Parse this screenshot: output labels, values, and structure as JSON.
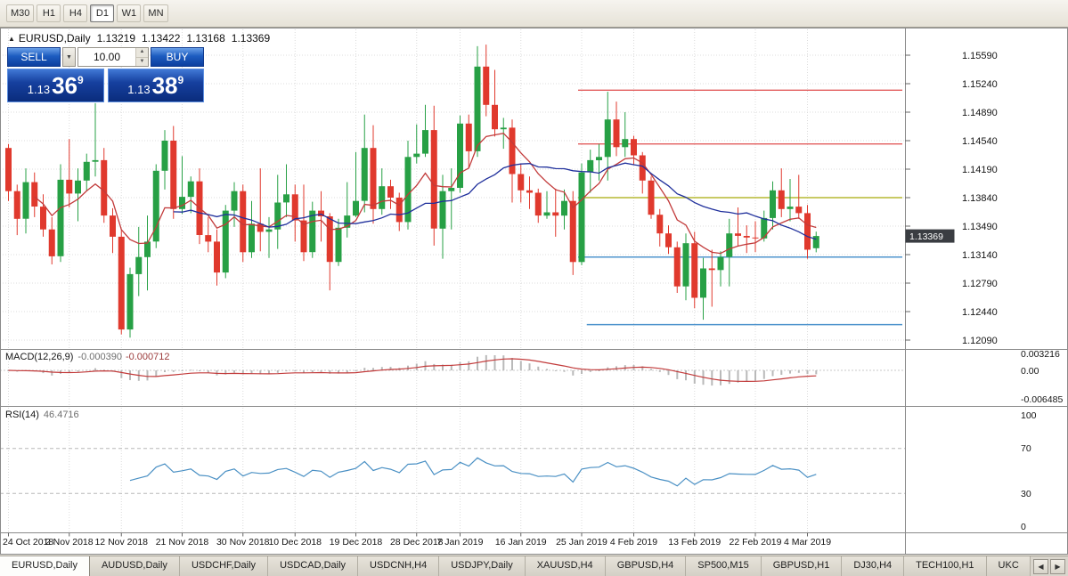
{
  "toolbar": {
    "timeframes": [
      {
        "label": "M30",
        "active": false
      },
      {
        "label": "H1",
        "active": false
      },
      {
        "label": "H4",
        "active": false
      },
      {
        "label": "D1",
        "active": true
      },
      {
        "label": "W1",
        "active": false
      },
      {
        "label": "MN",
        "active": false
      }
    ]
  },
  "header": {
    "symbol": "EURUSD,Daily",
    "open": "1.13219",
    "high": "1.13422",
    "low": "1.13168",
    "close": "1.13369"
  },
  "trade": {
    "sell_label": "SELL",
    "buy_label": "BUY",
    "volume": "10.00",
    "sell_price": {
      "prefix": "1.13",
      "big": "36",
      "sup": "9"
    },
    "buy_price": {
      "prefix": "1.13",
      "big": "38",
      "sup": "9"
    }
  },
  "macd": {
    "name": "MACD(12,26,9)",
    "value1": "-0.000390",
    "value2": "-0.000712",
    "scale": [
      "0.003216",
      "0.00",
      "-0.006485"
    ]
  },
  "rsi": {
    "name": "RSI(14)",
    "value": "46.4716",
    "scale": [
      "100",
      "70",
      "30",
      "0"
    ],
    "levels": [
      70,
      30
    ]
  },
  "icons": {
    "header_triangle": "▲",
    "caret_down": "▼",
    "spin_up": "▲",
    "spin_down": "▼",
    "arrow_left": "◀",
    "arrow_right": "▶"
  },
  "tabs": [
    {
      "label": "EURUSD,Daily",
      "active": true
    },
    {
      "label": "AUDUSD,Daily",
      "active": false
    },
    {
      "label": "USDCHF,Daily",
      "active": false
    },
    {
      "label": "USDCAD,Daily",
      "active": false
    },
    {
      "label": "USDCNH,H4",
      "active": false
    },
    {
      "label": "USDJPY,Daily",
      "active": false
    },
    {
      "label": "XAUUSD,H4",
      "active": false
    },
    {
      "label": "GBPUSD,H4",
      "active": false
    },
    {
      "label": "SP500,M15",
      "active": false
    },
    {
      "label": "GBPUSD,H1",
      "active": false
    },
    {
      "label": "DJ30,H4",
      "active": false
    },
    {
      "label": "TECH100,H1",
      "active": false
    },
    {
      "label": "UKC",
      "active": false
    }
  ],
  "colors": {
    "bull": "#27a045",
    "bear": "#e0392d",
    "ma_fast": "#c23b3b",
    "ma_slow": "#20309c",
    "grid": "#dcdcdc",
    "separator": "#8a8a8a",
    "macd_hist": "#b9b9b9",
    "macd_signal": "#c23b3b",
    "rsi_line": "#4a90c4",
    "badge_bg": "#3a3d42",
    "resistance": "#e25d5d",
    "pivot": "#b6b832",
    "support": "#4f94cd"
  },
  "chart_data": {
    "type": "candlestick",
    "symbol": "EURUSD",
    "timeframe": "Daily",
    "current_price_label": "1.13369",
    "ohlc_current": {
      "open": 1.13219,
      "high": 1.13422,
      "low": 1.13168,
      "close": 1.13369
    },
    "y_axis": {
      "min": 1.1209,
      "max": 1.1559,
      "tick": 0.0035
    },
    "price_axis_labels": [
      "1.15590",
      "1.15240",
      "1.14890",
      "1.14540",
      "1.14190",
      "1.13840",
      "1.13490",
      "1.13140",
      "1.12790",
      "1.12440",
      "1.12090"
    ],
    "date_ticks": [
      {
        "i": 0,
        "label": "24 Oct 2018"
      },
      {
        "i": 7,
        "label": "2 Nov 2018"
      },
      {
        "i": 13,
        "label": "12 Nov 2018"
      },
      {
        "i": 20,
        "label": "21 Nov 2018"
      },
      {
        "i": 27,
        "label": "30 Nov 2018"
      },
      {
        "i": 33,
        "label": "10 Dec 2018"
      },
      {
        "i": 40,
        "label": "19 Dec 2018"
      },
      {
        "i": 47,
        "label": "28 Dec 2018"
      },
      {
        "i": 52,
        "label": "7 Jan 2019"
      },
      {
        "i": 59,
        "label": "16 Jan 2019"
      },
      {
        "i": 66,
        "label": "25 Jan 2019"
      },
      {
        "i": 72,
        "label": "4 Feb 2019"
      },
      {
        "i": 79,
        "label": "13 Feb 2019"
      },
      {
        "i": 86,
        "label": "22 Feb 2019"
      },
      {
        "i": 92,
        "label": "4 Mar 2019"
      }
    ],
    "horizontal_lines": [
      {
        "price": 1.1516,
        "color": "#e25d5d",
        "start_index": 66
      },
      {
        "price": 1.145,
        "color": "#e25d5d",
        "start_index": 66
      },
      {
        "price": 1.1384,
        "color": "#b6b832",
        "start_index": 66
      },
      {
        "price": 1.1311,
        "color": "#4f94cd",
        "start_index": 66
      },
      {
        "price": 1.1228,
        "color": "#4f94cd",
        "start_index": 67
      }
    ],
    "moving_averages": [
      {
        "type": "EMA",
        "period": 8,
        "color": "#c23b3b"
      },
      {
        "type": "SMA",
        "period": 20,
        "color": "#20309c"
      }
    ],
    "indicators": [
      {
        "name": "MACD",
        "params": [
          12,
          26,
          9
        ],
        "display_values": [
          -0.00039,
          -0.000712
        ],
        "scale": [
          0.003216,
          0,
          -0.006485
        ]
      },
      {
        "name": "RSI",
        "params": [
          14
        ],
        "display_value": 46.4716,
        "scale": [
          100,
          70,
          30,
          0
        ],
        "levels": [
          70,
          30
        ]
      }
    ],
    "candles": [
      [
        1.1445,
        1.145,
        1.138,
        1.1392
      ],
      [
        1.1392,
        1.14,
        1.1338,
        1.1358
      ],
      [
        1.1358,
        1.142,
        1.134,
        1.1403
      ],
      [
        1.1403,
        1.1415,
        1.136,
        1.1373
      ],
      [
        1.1373,
        1.1388,
        1.1336,
        1.1345
      ],
      [
        1.1345,
        1.136,
        1.1302,
        1.1312
      ],
      [
        1.1312,
        1.1425,
        1.1305,
        1.1406
      ],
      [
        1.1406,
        1.1456,
        1.1372,
        1.1389
      ],
      [
        1.1389,
        1.142,
        1.1355,
        1.1405
      ],
      [
        1.1405,
        1.1438,
        1.1392,
        1.1428
      ],
      [
        1.1428,
        1.15,
        1.141,
        1.143
      ],
      [
        1.143,
        1.1445,
        1.1353,
        1.1362
      ],
      [
        1.1362,
        1.1371,
        1.1316,
        1.1336
      ],
      [
        1.1336,
        1.1344,
        1.1216,
        1.1222
      ],
      [
        1.1222,
        1.1298,
        1.1212,
        1.129
      ],
      [
        1.129,
        1.1348,
        1.1263,
        1.1311
      ],
      [
        1.1311,
        1.1362,
        1.127,
        1.133
      ],
      [
        1.133,
        1.1425,
        1.1322,
        1.1417
      ],
      [
        1.1417,
        1.1467,
        1.1394,
        1.1454
      ],
      [
        1.1454,
        1.1472,
        1.1358,
        1.137
      ],
      [
        1.137,
        1.1435,
        1.1364,
        1.1385
      ],
      [
        1.1385,
        1.141,
        1.1365,
        1.1404
      ],
      [
        1.1404,
        1.142,
        1.1327,
        1.1338
      ],
      [
        1.1338,
        1.136,
        1.1317,
        1.133
      ],
      [
        1.133,
        1.1345,
        1.1276,
        1.1292
      ],
      [
        1.1292,
        1.1375,
        1.1285,
        1.1368
      ],
      [
        1.1368,
        1.1403,
        1.1348,
        1.1392
      ],
      [
        1.1392,
        1.14,
        1.1305,
        1.1317
      ],
      [
        1.1317,
        1.138,
        1.131,
        1.1352
      ],
      [
        1.1352,
        1.142,
        1.1318,
        1.1342
      ],
      [
        1.1342,
        1.136,
        1.131,
        1.1345
      ],
      [
        1.1345,
        1.1412,
        1.1321,
        1.1378
      ],
      [
        1.1378,
        1.1425,
        1.136,
        1.1388
      ],
      [
        1.1388,
        1.14,
        1.133,
        1.1356
      ],
      [
        1.1356,
        1.14,
        1.1306,
        1.1317
      ],
      [
        1.1317,
        1.1379,
        1.131,
        1.1368
      ],
      [
        1.1368,
        1.1392,
        1.133,
        1.1361
      ],
      [
        1.1361,
        1.1365,
        1.127,
        1.1305
      ],
      [
        1.1305,
        1.1358,
        1.13,
        1.1347
      ],
      [
        1.1347,
        1.1403,
        1.1335,
        1.1362
      ],
      [
        1.1362,
        1.144,
        1.136,
        1.138
      ],
      [
        1.138,
        1.1486,
        1.1366,
        1.1445
      ],
      [
        1.1445,
        1.1473,
        1.1352,
        1.137
      ],
      [
        1.137,
        1.142,
        1.1363,
        1.1398
      ],
      [
        1.1398,
        1.1406,
        1.137,
        1.1384
      ],
      [
        1.1384,
        1.139,
        1.1343,
        1.1354
      ],
      [
        1.1354,
        1.1454,
        1.1345,
        1.1434
      ],
      [
        1.1434,
        1.1474,
        1.1426,
        1.1438
      ],
      [
        1.1438,
        1.1498,
        1.1434,
        1.1467
      ],
      [
        1.1467,
        1.1497,
        1.1325,
        1.1346
      ],
      [
        1.1346,
        1.1412,
        1.1309,
        1.1392
      ],
      [
        1.1392,
        1.142,
        1.1345,
        1.1396
      ],
      [
        1.1396,
        1.1485,
        1.139,
        1.1475
      ],
      [
        1.1475,
        1.1486,
        1.1421,
        1.1441
      ],
      [
        1.1441,
        1.157,
        1.1434,
        1.1545
      ],
      [
        1.1545,
        1.1572,
        1.1484,
        1.1498
      ],
      [
        1.1498,
        1.1541,
        1.1459,
        1.1468
      ],
      [
        1.1468,
        1.1482,
        1.1444,
        1.147
      ],
      [
        1.147,
        1.148,
        1.1378,
        1.1413
      ],
      [
        1.1413,
        1.1426,
        1.1378,
        1.1393
      ],
      [
        1.1393,
        1.141,
        1.137,
        1.139
      ],
      [
        1.139,
        1.1395,
        1.1353,
        1.1362
      ],
      [
        1.1362,
        1.1392,
        1.1358,
        1.1366
      ],
      [
        1.1366,
        1.1395,
        1.1336,
        1.1362
      ],
      [
        1.1362,
        1.1394,
        1.1345,
        1.138
      ],
      [
        1.138,
        1.1392,
        1.1289,
        1.1305
      ],
      [
        1.1305,
        1.1426,
        1.1301,
        1.1415
      ],
      [
        1.1415,
        1.1443,
        1.139,
        1.143
      ],
      [
        1.143,
        1.145,
        1.1405,
        1.1434
      ],
      [
        1.1434,
        1.1514,
        1.1405,
        1.148
      ],
      [
        1.148,
        1.1502,
        1.1435,
        1.1446
      ],
      [
        1.1446,
        1.1489,
        1.1434,
        1.1456
      ],
      [
        1.1456,
        1.146,
        1.1425,
        1.1436
      ],
      [
        1.1436,
        1.144,
        1.1389,
        1.1405
      ],
      [
        1.1405,
        1.141,
        1.1358,
        1.1363
      ],
      [
        1.1363,
        1.137,
        1.1324,
        1.134
      ],
      [
        1.134,
        1.135,
        1.1315,
        1.1323
      ],
      [
        1.1323,
        1.133,
        1.1267,
        1.1275
      ],
      [
        1.1275,
        1.134,
        1.1258,
        1.1328
      ],
      [
        1.1328,
        1.1342,
        1.1248,
        1.1261
      ],
      [
        1.1261,
        1.131,
        1.1234,
        1.1297
      ],
      [
        1.1297,
        1.132,
        1.125,
        1.1295
      ],
      [
        1.1295,
        1.1318,
        1.1275,
        1.1311
      ],
      [
        1.1311,
        1.1358,
        1.1275,
        1.134
      ],
      [
        1.134,
        1.1372,
        1.1324,
        1.1337
      ],
      [
        1.1337,
        1.135,
        1.1316,
        1.1335
      ],
      [
        1.1335,
        1.1355,
        1.1317,
        1.1334
      ],
      [
        1.1334,
        1.1368,
        1.133,
        1.1359
      ],
      [
        1.1359,
        1.1404,
        1.1345,
        1.1393
      ],
      [
        1.1393,
        1.142,
        1.136,
        1.137
      ],
      [
        1.137,
        1.1407,
        1.1355,
        1.1373
      ],
      [
        1.1373,
        1.1412,
        1.1358,
        1.1365
      ],
      [
        1.1365,
        1.1375,
        1.1309,
        1.132
      ],
      [
        1.13219,
        1.13422,
        1.13168,
        1.13369
      ]
    ]
  }
}
